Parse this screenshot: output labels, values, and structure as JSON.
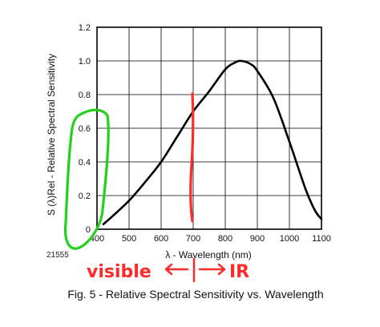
{
  "chart_data": {
    "type": "line",
    "title": "",
    "xlabel": "λ - Wavelength (nm)",
    "ylabel": "S (λ)Rel - Relative Spectral Sensitivity",
    "xlim": [
      400,
      1100
    ],
    "ylim": [
      0,
      1.2
    ],
    "x_ticks": [
      "400",
      "500",
      "600",
      "700",
      "800",
      "900",
      "1000",
      "1100"
    ],
    "y_ticks": [
      "0",
      "0.2",
      "0.4",
      "0.6",
      "0.8",
      "1.0",
      "1.2"
    ],
    "grid": true,
    "series": [
      {
        "x": [
          420,
          450,
          500,
          550,
          600,
          650,
          700,
          750,
          800,
          830,
          850,
          880,
          900,
          950,
          1000,
          1050,
          1080,
          1100
        ],
        "y": [
          0.03,
          0.08,
          0.17,
          0.28,
          0.4,
          0.55,
          0.7,
          0.82,
          0.95,
          0.99,
          1.0,
          0.98,
          0.94,
          0.78,
          0.52,
          0.24,
          0.11,
          0.06
        ]
      }
    ],
    "annotations": {
      "visible_region": [
        400,
        700
      ],
      "ir_boundary": 700
    }
  },
  "figure_id": "21555",
  "caption": "Fig. 5 - Relative Spectral Sensitivity vs. Wavelength",
  "handwritten": {
    "visible": "visible",
    "ir": "IR"
  },
  "colors": {
    "curve": "#000000",
    "grid": "#000000",
    "marker_red": "#ff2a2a",
    "marker_green": "#22d11a"
  }
}
